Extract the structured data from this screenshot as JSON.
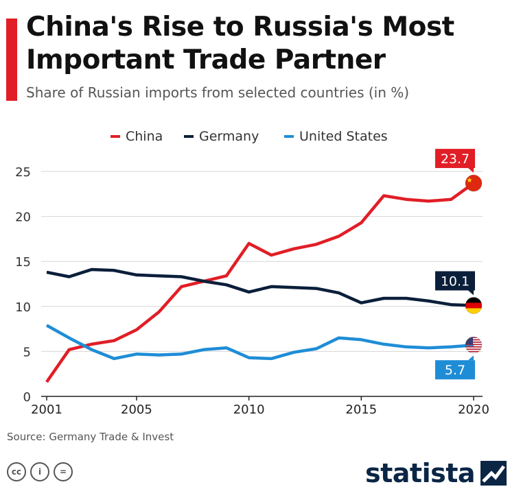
{
  "title": "China's Rise to Russia's Most Important Trade Partner",
  "subtitle": "Share of Russian imports from selected countries (in %)",
  "source": "Source: Germany Trade & Invest",
  "brand": "statista",
  "license_icons": [
    "cc-icon",
    "by-icon",
    "nd-icon"
  ],
  "license_labels": [
    "cc",
    "i",
    "="
  ],
  "colors": {
    "accent": "#e11e26",
    "china": "#e11e26",
    "germany": "#0b1f3a",
    "us": "#1f8dd6",
    "grid": "#d5d5d5"
  },
  "chart_data": {
    "type": "line",
    "title": "China's Rise to Russia's Most Important Trade Partner",
    "ylabel": "",
    "xlabel": "",
    "ylim": [
      0,
      25
    ],
    "xlim": [
      2001,
      2020
    ],
    "yticks": [
      0,
      5,
      10,
      15,
      20,
      25
    ],
    "xticks": [
      2001,
      2005,
      2010,
      2015,
      2020
    ],
    "legend": "top",
    "x": [
      2001,
      2002,
      2003,
      2004,
      2005,
      2006,
      2007,
      2008,
      2009,
      2010,
      2011,
      2012,
      2013,
      2014,
      2015,
      2016,
      2017,
      2018,
      2019,
      2020
    ],
    "series": [
      {
        "name": "China",
        "color": "#e11e26",
        "values": [
          1.6,
          5.2,
          5.8,
          6.2,
          7.4,
          9.4,
          12.2,
          12.8,
          13.4,
          17.0,
          15.7,
          16.4,
          16.9,
          17.8,
          19.3,
          22.3,
          21.9,
          21.7,
          21.9,
          23.7
        ],
        "end_label": "23.7",
        "flag": "china"
      },
      {
        "name": "Germany",
        "color": "#0b1f3a",
        "values": [
          13.8,
          13.3,
          14.1,
          14.0,
          13.5,
          13.4,
          13.3,
          12.8,
          12.4,
          11.6,
          12.2,
          12.1,
          12.0,
          11.5,
          10.4,
          10.9,
          10.9,
          10.6,
          10.2,
          10.1
        ],
        "end_label": "10.1",
        "flag": "germany"
      },
      {
        "name": "United States",
        "color": "#1f8dd6",
        "values": [
          7.9,
          6.5,
          5.2,
          4.2,
          4.7,
          4.6,
          4.7,
          5.2,
          5.4,
          4.3,
          4.2,
          4.9,
          5.3,
          6.5,
          6.3,
          5.8,
          5.5,
          5.4,
          5.5,
          5.7
        ],
        "end_label": "5.7",
        "flag": "us"
      }
    ]
  }
}
